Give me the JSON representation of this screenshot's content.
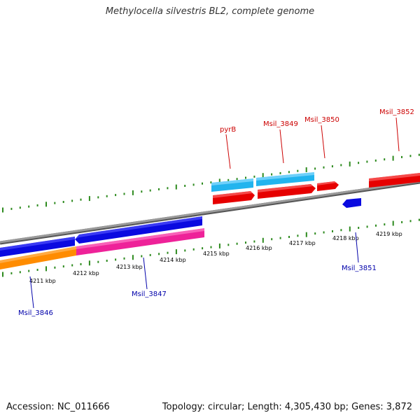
{
  "title": "Methylocella silvestris BL2, complete genome",
  "footer": {
    "accession": "Accession: NC_011666",
    "stats": "Topology: circular; Length: 4,305,430 bp; Genes: 3,872"
  },
  "colors": {
    "backbone": "#8a8a8a",
    "forward_cds": "#e60000",
    "reverse_cds": "#0a0ae0",
    "light_blue": "#22b4ee",
    "pink": "#ee2299",
    "orange": "#ff8c00",
    "tick": "#2d8a1e",
    "label_red": "#cc0000",
    "label_blue": "#0000aa"
  },
  "tick_labels": [
    "4211 kbp",
    "4212 kbp",
    "4213 kbp",
    "4214 kbp",
    "4215 kbp",
    "4216 kbp",
    "4217 kbp",
    "4218 kbp",
    "4219 kbp"
  ],
  "gene_labels": {
    "pyrB": "pyrB",
    "msil3849": "Msil_3849",
    "msil3850": "Msil_3850",
    "msil3852": "Msil_3852",
    "msil3851": "Msil_3851",
    "msil3847": "Msil_3847",
    "msil3846": "Msil_3846"
  }
}
